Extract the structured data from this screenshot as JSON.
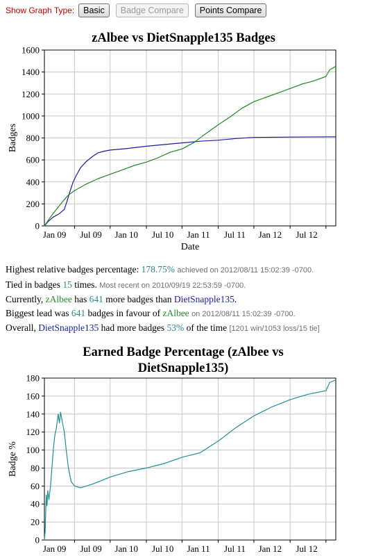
{
  "toolbar": {
    "label": "Show Graph Type:",
    "basic": "Basic",
    "badge_compare": "Badge Compare",
    "points_compare": "Points Compare"
  },
  "colors": {
    "zAlbee": "#1f8a1f",
    "DietSnapple135": "#1a1aa0",
    "percentage": "#1f8f8f"
  },
  "chart_data": [
    {
      "type": "line",
      "title": "zAlbee vs DietSnapple135 Badges",
      "xlabel": "Date",
      "ylabel": "Badges",
      "ylim": [
        0,
        1600
      ],
      "yticks": [
        "0",
        "200",
        "400",
        "600",
        "800",
        "1000",
        "1200",
        "1400",
        "1600"
      ],
      "xlim": [
        "2008-08-01",
        "2012-08-20"
      ],
      "xticks": [
        {
          "date": "2009-01-01",
          "label": "Jan 09"
        },
        {
          "date": "2009-07-01",
          "label": "Jul 09"
        },
        {
          "date": "2010-01-01",
          "label": "Jan 10"
        },
        {
          "date": "2010-07-01",
          "label": "Jul 10"
        },
        {
          "date": "2011-01-01",
          "label": "Jan 11"
        },
        {
          "date": "2011-07-01",
          "label": "Jul 11"
        },
        {
          "date": "2012-01-01",
          "label": "Jan 12"
        },
        {
          "date": "2012-07-01",
          "label": "Jul 12"
        }
      ],
      "grid": true,
      "series": [
        {
          "name": "DietSnapple135",
          "points": [
            [
              "2008-08-01",
              0
            ],
            [
              "2008-08-20",
              40
            ],
            [
              "2008-09-15",
              80
            ],
            [
              "2008-10-15",
              110
            ],
            [
              "2008-11-10",
              150
            ],
            [
              "2008-11-25",
              230
            ],
            [
              "2008-12-10",
              320
            ],
            [
              "2008-12-25",
              400
            ],
            [
              "2009-01-10",
              460
            ],
            [
              "2009-02-01",
              530
            ],
            [
              "2009-03-01",
              585
            ],
            [
              "2009-04-01",
              630
            ],
            [
              "2009-05-01",
              665
            ],
            [
              "2009-06-01",
              680
            ],
            [
              "2009-07-01",
              690
            ],
            [
              "2009-08-01",
              695
            ],
            [
              "2009-10-01",
              705
            ],
            [
              "2010-01-01",
              725
            ],
            [
              "2010-04-01",
              740
            ],
            [
              "2010-07-01",
              755
            ],
            [
              "2010-10-01",
              770
            ],
            [
              "2011-01-01",
              780
            ],
            [
              "2011-04-01",
              795
            ],
            [
              "2011-07-01",
              805
            ],
            [
              "2012-01-01",
              808
            ],
            [
              "2012-08-20",
              811
            ]
          ]
        },
        {
          "name": "zAlbee",
          "points": [
            [
              "2008-08-01",
              0
            ],
            [
              "2008-09-01",
              80
            ],
            [
              "2008-10-01",
              150
            ],
            [
              "2008-11-01",
              220
            ],
            [
              "2008-12-01",
              280
            ],
            [
              "2009-01-01",
              320
            ],
            [
              "2009-03-01",
              380
            ],
            [
              "2009-05-01",
              430
            ],
            [
              "2009-07-01",
              470
            ],
            [
              "2009-09-01",
              510
            ],
            [
              "2009-11-01",
              550
            ],
            [
              "2010-01-01",
              580
            ],
            [
              "2010-03-01",
              620
            ],
            [
              "2010-05-01",
              670
            ],
            [
              "2010-07-01",
              700
            ],
            [
              "2010-09-01",
              760
            ],
            [
              "2010-10-15",
              820
            ],
            [
              "2010-12-01",
              880
            ],
            [
              "2011-01-01",
              920
            ],
            [
              "2011-03-01",
              990
            ],
            [
              "2011-05-01",
              1070
            ],
            [
              "2011-07-01",
              1130
            ],
            [
              "2011-09-01",
              1170
            ],
            [
              "2011-11-01",
              1210
            ],
            [
              "2012-01-01",
              1250
            ],
            [
              "2012-03-01",
              1290
            ],
            [
              "2012-05-01",
              1320
            ],
            [
              "2012-07-01",
              1360
            ],
            [
              "2012-07-20",
              1420
            ],
            [
              "2012-08-20",
              1452
            ]
          ]
        }
      ]
    },
    {
      "type": "line",
      "title": "Earned Badge Percentage (zAlbee vs DietSnapple135)",
      "xlabel": "",
      "ylabel": "Badge %",
      "ylim": [
        0,
        180
      ],
      "yticks": [
        "0",
        "20",
        "40",
        "60",
        "80",
        "100",
        "120",
        "140",
        "160",
        "180"
      ],
      "xlim": [
        "2008-08-01",
        "2012-08-20"
      ],
      "xticks": [
        {
          "date": "2009-01-01",
          "label": "Jan 09"
        },
        {
          "date": "2009-07-01",
          "label": "Jul 09"
        },
        {
          "date": "2010-01-01",
          "label": "Jan 10"
        },
        {
          "date": "2010-07-01",
          "label": "Jul 10"
        },
        {
          "date": "2011-01-01",
          "label": "Jan 11"
        },
        {
          "date": "2011-07-01",
          "label": "Jul 11"
        },
        {
          "date": "2012-01-01",
          "label": "Jan 12"
        },
        {
          "date": "2012-07-01",
          "label": "Jul 12"
        }
      ],
      "grid": true,
      "series": [
        {
          "name": "zAlbee vs DietSnapple135",
          "points": [
            [
              "2008-08-01",
              0
            ],
            [
              "2008-08-05",
              10
            ],
            [
              "2008-08-10",
              50
            ],
            [
              "2008-08-14",
              38
            ],
            [
              "2008-08-18",
              55
            ],
            [
              "2008-08-24",
              45
            ],
            [
              "2008-09-01",
              60
            ],
            [
              "2008-09-08",
              80
            ],
            [
              "2008-09-15",
              100
            ],
            [
              "2008-09-22",
              115
            ],
            [
              "2008-10-01",
              125
            ],
            [
              "2008-10-10",
              140
            ],
            [
              "2008-10-16",
              130
            ],
            [
              "2008-10-22",
              142
            ],
            [
              "2008-11-01",
              130
            ],
            [
              "2008-11-10",
              120
            ],
            [
              "2008-11-20",
              100
            ],
            [
              "2008-12-01",
              80
            ],
            [
              "2008-12-15",
              65
            ],
            [
              "2009-01-01",
              60
            ],
            [
              "2009-02-01",
              58
            ],
            [
              "2009-04-01",
              62
            ],
            [
              "2009-07-01",
              70
            ],
            [
              "2009-10-01",
              76
            ],
            [
              "2010-01-01",
              80
            ],
            [
              "2010-04-01",
              85
            ],
            [
              "2010-07-01",
              92
            ],
            [
              "2010-10-01",
              97
            ],
            [
              "2011-01-01",
              110
            ],
            [
              "2011-04-01",
              125
            ],
            [
              "2011-07-01",
              138
            ],
            [
              "2011-10-01",
              148
            ],
            [
              "2012-01-01",
              156
            ],
            [
              "2012-04-01",
              162
            ],
            [
              "2012-07-01",
              166
            ],
            [
              "2012-07-20",
              175
            ],
            [
              "2012-08-20",
              178
            ]
          ]
        }
      ]
    }
  ],
  "stats": {
    "line1": {
      "label": "Highest relative badges percentage:",
      "value": "178.75%",
      "suffix": "achieved on 2012/08/11 15:02:39 -0700."
    },
    "line2": {
      "prefix": "Tied in badges",
      "count": "15",
      "times": "times.",
      "note": "Most recent on 2010/09/19 22:53:59 -0700."
    },
    "line3": {
      "prefix": "Currently,",
      "user1": "zAlbee",
      "has": "has",
      "count": "641",
      "mid": "more badges than",
      "user2": "DietSnapple135",
      "end": "."
    },
    "line4": {
      "prefix": "Biggest lead was",
      "count": "641",
      "mid": "badges in favour of",
      "user": "zAlbee",
      "note": "on 2012/08/11 15:02:39 -0700."
    },
    "line5": {
      "prefix": "Overall,",
      "user": "DietSnapple135",
      "mid": "had more badges",
      "percent": "53%",
      "of": "of the time",
      "note": "[1201 win/1053 loss/15 tie]"
    }
  }
}
